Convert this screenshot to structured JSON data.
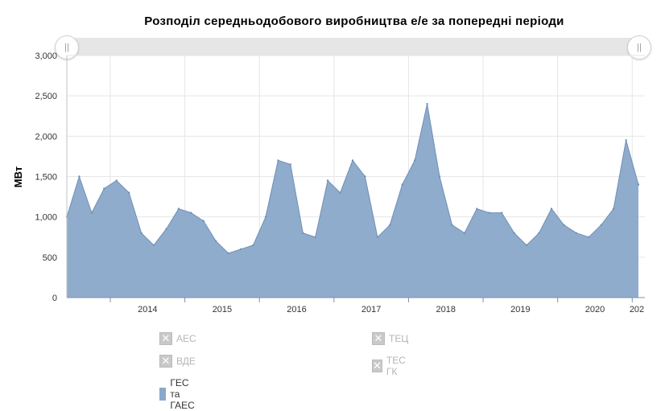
{
  "chart_data": {
    "type": "area",
    "title": "Розподіл середньодобового виробництва е/е за попередні періоди",
    "xlabel": "",
    "ylabel": "МВт",
    "ylim": [
      0,
      3000
    ],
    "y_ticks": [
      "0",
      "500",
      "1,000",
      "1,500",
      "2,000",
      "2,500",
      "3,000"
    ],
    "x_ticks": [
      "2014",
      "2015",
      "2016",
      "2017",
      "2018",
      "2019",
      "2020",
      "202"
    ],
    "xlim": [
      "2013-06",
      "2021-02"
    ],
    "grid": true,
    "legend_position": "bottom",
    "series": [
      {
        "name": "ГЕС та ГАЕС",
        "visible": true,
        "color": "#8aa8c9",
        "x": [
          "2013-06",
          "2013-08",
          "2013-10",
          "2013-12",
          "2014-02",
          "2014-04",
          "2014-06",
          "2014-08",
          "2014-10",
          "2014-12",
          "2015-02",
          "2015-04",
          "2015-06",
          "2015-08",
          "2015-10",
          "2015-12",
          "2016-02",
          "2016-04",
          "2016-06",
          "2016-08",
          "2016-10",
          "2016-12",
          "2017-02",
          "2017-04",
          "2017-06",
          "2017-08",
          "2017-10",
          "2017-12",
          "2018-02",
          "2018-04",
          "2018-06",
          "2018-08",
          "2018-10",
          "2018-12",
          "2019-02",
          "2019-04",
          "2019-06",
          "2019-08",
          "2019-10",
          "2019-12",
          "2020-02",
          "2020-04",
          "2020-06",
          "2020-08",
          "2020-10",
          "2020-12",
          "2021-02"
        ],
        "values": [
          1000,
          1500,
          1050,
          1350,
          1450,
          1300,
          800,
          650,
          850,
          1100,
          1050,
          950,
          700,
          550,
          600,
          650,
          1000,
          1700,
          1650,
          800,
          750,
          1450,
          1300,
          1700,
          1500,
          750,
          900,
          1400,
          1700,
          2400,
          1500,
          900,
          800,
          1100,
          1050,
          1050,
          800,
          650,
          800,
          1100,
          900,
          800,
          750,
          900,
          1100,
          1950,
          1400
        ]
      },
      {
        "name": "АЕС",
        "visible": false,
        "color": "#7cb5ec",
        "x": [],
        "values": []
      },
      {
        "name": "ВДЕ",
        "visible": false,
        "color": "#90ed7d",
        "x": [],
        "values": []
      },
      {
        "name": "ТЕЦ",
        "visible": false,
        "color": "#f7a35c",
        "x": [],
        "values": []
      },
      {
        "name": "ТЕС ГК",
        "visible": false,
        "color": "#8085e9",
        "x": [],
        "values": []
      }
    ]
  },
  "legend": [
    {
      "label": "АЕС",
      "visible": false
    },
    {
      "label": "ТЕЦ",
      "visible": false
    },
    {
      "label": "ВДЕ",
      "visible": false
    },
    {
      "label": "ТЕС ГК",
      "visible": false
    },
    {
      "label": "ГЕС та ГАЕС",
      "visible": true
    }
  ],
  "navigator": {
    "handle_glyph": "||"
  },
  "colors": {
    "area_fill": "#8aa8c9",
    "area_line": "#6f8fb6",
    "grid": "#e6e6e6",
    "legend_off": "#c9c9c9"
  },
  "icons": {
    "legend_hidden": "cross-box-icon",
    "legend_visible": "filled-box-icon"
  }
}
